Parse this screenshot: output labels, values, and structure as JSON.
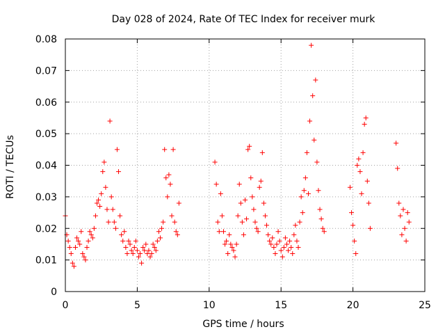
{
  "chart_data": {
    "type": "scatter",
    "title": "Day 028 of 2024, Rate Of TEC Index for receiver murk",
    "xlabel": "GPS time / hours",
    "ylabel": "ROTI / TECUs",
    "xlim": [
      0,
      25
    ],
    "ylim": [
      0,
      0.08
    ],
    "x_ticks": [
      "0",
      "5",
      "10",
      "15",
      "20",
      "25"
    ],
    "y_ticks": [
      "0",
      "0.01",
      "0.02",
      "0.03",
      "0.04",
      "0.05",
      "0.06",
      "0.07",
      "0.08"
    ],
    "grid": true,
    "marker": "+",
    "color": "#ff0000",
    "points": [
      [
        0.0,
        0.024
      ],
      [
        0.1,
        0.018
      ],
      [
        0.2,
        0.016
      ],
      [
        0.3,
        0.014
      ],
      [
        0.4,
        0.012
      ],
      [
        0.5,
        0.009
      ],
      [
        0.6,
        0.008
      ],
      [
        0.7,
        0.014
      ],
      [
        0.8,
        0.017
      ],
      [
        0.9,
        0.016
      ],
      [
        1.0,
        0.015
      ],
      [
        1.1,
        0.019
      ],
      [
        1.2,
        0.012
      ],
      [
        1.3,
        0.011
      ],
      [
        1.4,
        0.01
      ],
      [
        1.5,
        0.014
      ],
      [
        1.6,
        0.016
      ],
      [
        1.7,
        0.019
      ],
      [
        1.8,
        0.018
      ],
      [
        1.9,
        0.017
      ],
      [
        2.0,
        0.02
      ],
      [
        2.1,
        0.024
      ],
      [
        2.2,
        0.028
      ],
      [
        2.3,
        0.029
      ],
      [
        2.4,
        0.027
      ],
      [
        2.5,
        0.031
      ],
      [
        2.6,
        0.038
      ],
      [
        2.7,
        0.041
      ],
      [
        2.8,
        0.033
      ],
      [
        2.9,
        0.026
      ],
      [
        3.0,
        0.022
      ],
      [
        3.1,
        0.054
      ],
      [
        3.2,
        0.03
      ],
      [
        3.3,
        0.026
      ],
      [
        3.4,
        0.022
      ],
      [
        3.5,
        0.02
      ],
      [
        3.6,
        0.045
      ],
      [
        3.7,
        0.038
      ],
      [
        3.8,
        0.024
      ],
      [
        3.9,
        0.018
      ],
      [
        4.0,
        0.016
      ],
      [
        4.1,
        0.019
      ],
      [
        4.2,
        0.014
      ],
      [
        4.3,
        0.012
      ],
      [
        4.4,
        0.016
      ],
      [
        4.5,
        0.015
      ],
      [
        4.6,
        0.013
      ],
      [
        4.7,
        0.012
      ],
      [
        4.8,
        0.014
      ],
      [
        4.9,
        0.016
      ],
      [
        5.0,
        0.013
      ],
      [
        5.1,
        0.011
      ],
      [
        5.2,
        0.012
      ],
      [
        5.3,
        0.009
      ],
      [
        5.4,
        0.014
      ],
      [
        5.5,
        0.013
      ],
      [
        5.6,
        0.015
      ],
      [
        5.7,
        0.012
      ],
      [
        5.8,
        0.013
      ],
      [
        5.9,
        0.011
      ],
      [
        6.0,
        0.012
      ],
      [
        6.1,
        0.015
      ],
      [
        6.2,
        0.014
      ],
      [
        6.3,
        0.013
      ],
      [
        6.4,
        0.016
      ],
      [
        6.5,
        0.019
      ],
      [
        6.6,
        0.017
      ],
      [
        6.7,
        0.02
      ],
      [
        6.8,
        0.022
      ],
      [
        6.9,
        0.045
      ],
      [
        7.0,
        0.036
      ],
      [
        7.1,
        0.03
      ],
      [
        7.2,
        0.037
      ],
      [
        7.3,
        0.034
      ],
      [
        7.4,
        0.024
      ],
      [
        7.5,
        0.045
      ],
      [
        7.6,
        0.022
      ],
      [
        7.7,
        0.019
      ],
      [
        7.8,
        0.018
      ],
      [
        7.9,
        0.028
      ],
      [
        10.4,
        0.041
      ],
      [
        10.5,
        0.034
      ],
      [
        10.6,
        0.022
      ],
      [
        10.7,
        0.019
      ],
      [
        10.8,
        0.031
      ],
      [
        10.9,
        0.024
      ],
      [
        11.0,
        0.019
      ],
      [
        11.1,
        0.015
      ],
      [
        11.2,
        0.016
      ],
      [
        11.3,
        0.012
      ],
      [
        11.4,
        0.018
      ],
      [
        11.5,
        0.015
      ],
      [
        11.6,
        0.014
      ],
      [
        11.7,
        0.013
      ],
      [
        11.8,
        0.011
      ],
      [
        11.9,
        0.015
      ],
      [
        12.0,
        0.024
      ],
      [
        12.1,
        0.034
      ],
      [
        12.2,
        0.028
      ],
      [
        12.3,
        0.022
      ],
      [
        12.4,
        0.018
      ],
      [
        12.5,
        0.029
      ],
      [
        12.6,
        0.023
      ],
      [
        12.7,
        0.045
      ],
      [
        12.8,
        0.046
      ],
      [
        12.9,
        0.036
      ],
      [
        13.0,
        0.03
      ],
      [
        13.1,
        0.026
      ],
      [
        13.2,
        0.022
      ],
      [
        13.3,
        0.02
      ],
      [
        13.4,
        0.019
      ],
      [
        13.5,
        0.033
      ],
      [
        13.6,
        0.035
      ],
      [
        13.7,
        0.044
      ],
      [
        13.8,
        0.028
      ],
      [
        13.9,
        0.024
      ],
      [
        14.0,
        0.021
      ],
      [
        14.1,
        0.018
      ],
      [
        14.2,
        0.016
      ],
      [
        14.3,
        0.015
      ],
      [
        14.4,
        0.017
      ],
      [
        14.5,
        0.014
      ],
      [
        14.6,
        0.012
      ],
      [
        14.7,
        0.015
      ],
      [
        14.8,
        0.019
      ],
      [
        14.9,
        0.016
      ],
      [
        15.0,
        0.013
      ],
      [
        15.1,
        0.011
      ],
      [
        15.2,
        0.014
      ],
      [
        15.3,
        0.017
      ],
      [
        15.4,
        0.015
      ],
      [
        15.5,
        0.013
      ],
      [
        15.6,
        0.016
      ],
      [
        15.7,
        0.014
      ],
      [
        15.8,
        0.012
      ],
      [
        15.9,
        0.018
      ],
      [
        16.0,
        0.021
      ],
      [
        16.1,
        0.016
      ],
      [
        16.2,
        0.014
      ],
      [
        16.3,
        0.022
      ],
      [
        16.4,
        0.03
      ],
      [
        16.5,
        0.025
      ],
      [
        16.6,
        0.032
      ],
      [
        16.7,
        0.036
      ],
      [
        16.8,
        0.044
      ],
      [
        16.9,
        0.031
      ],
      [
        17.0,
        0.054
      ],
      [
        17.1,
        0.078
      ],
      [
        17.2,
        0.062
      ],
      [
        17.3,
        0.048
      ],
      [
        17.4,
        0.067
      ],
      [
        17.5,
        0.041
      ],
      [
        17.6,
        0.032
      ],
      [
        17.7,
        0.026
      ],
      [
        17.8,
        0.023
      ],
      [
        17.9,
        0.02
      ],
      [
        18.0,
        0.019
      ],
      [
        19.8,
        0.033
      ],
      [
        19.9,
        0.025
      ],
      [
        20.0,
        0.021
      ],
      [
        20.1,
        0.016
      ],
      [
        20.2,
        0.012
      ],
      [
        20.3,
        0.04
      ],
      [
        20.4,
        0.042
      ],
      [
        20.5,
        0.038
      ],
      [
        20.6,
        0.031
      ],
      [
        20.7,
        0.044
      ],
      [
        20.8,
        0.053
      ],
      [
        20.9,
        0.055
      ],
      [
        21.0,
        0.035
      ],
      [
        21.1,
        0.028
      ],
      [
        21.2,
        0.02
      ],
      [
        23.0,
        0.047
      ],
      [
        23.1,
        0.039
      ],
      [
        23.2,
        0.028
      ],
      [
        23.3,
        0.024
      ],
      [
        23.4,
        0.018
      ],
      [
        23.5,
        0.026
      ],
      [
        23.6,
        0.02
      ],
      [
        23.7,
        0.016
      ],
      [
        23.8,
        0.025
      ],
      [
        23.9,
        0.022
      ]
    ]
  }
}
